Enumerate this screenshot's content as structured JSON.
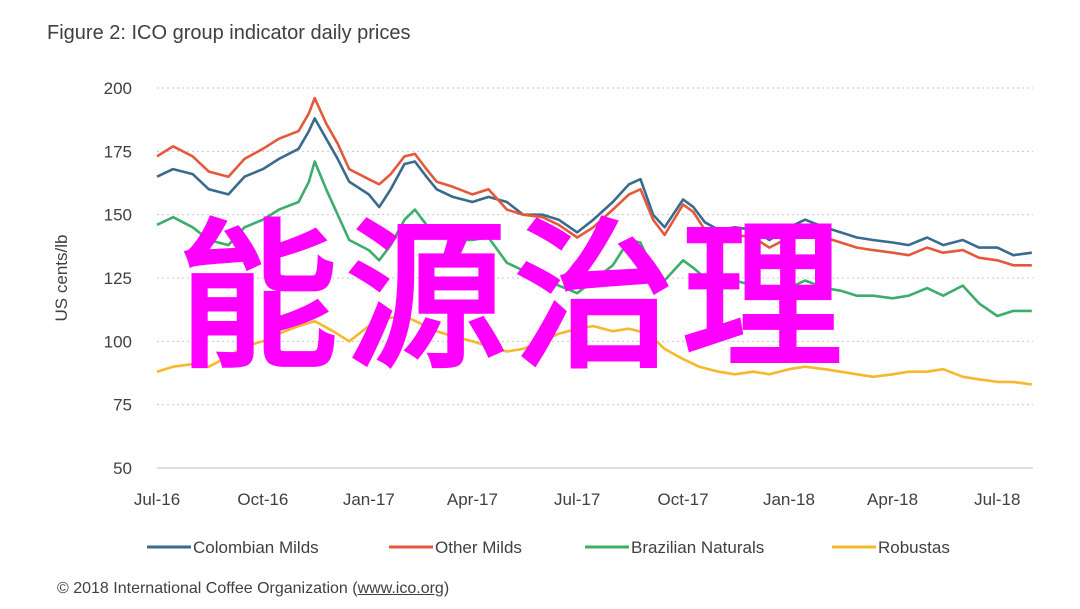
{
  "figure": {
    "title": "Figure 2: ICO group indicator daily prices",
    "source_prefix": "© 2018 International Coffee Organization (",
    "source_link": "www.ico.org",
    "source_suffix": ")",
    "watermark": "能源治理"
  },
  "chart_data": {
    "type": "line",
    "title": "Figure 2: ICO group indicator daily prices",
    "xlabel": "",
    "ylabel": "US cents/lb",
    "ylim": [
      50,
      200
    ],
    "yticks": [
      50,
      75,
      100,
      125,
      150,
      175,
      200
    ],
    "xlim": [
      "2016-07-01",
      "2018-08-01"
    ],
    "xticks": [
      {
        "label": "Jul-16",
        "date": "2016-07-01"
      },
      {
        "label": "Oct-16",
        "date": "2016-10-01"
      },
      {
        "label": "Jan-17",
        "date": "2017-01-01"
      },
      {
        "label": "Apr-17",
        "date": "2017-04-01"
      },
      {
        "label": "Jul-17",
        "date": "2017-07-01"
      },
      {
        "label": "Oct-17",
        "date": "2017-10-01"
      },
      {
        "label": "Jan-18",
        "date": "2018-01-01"
      },
      {
        "label": "Apr-18",
        "date": "2018-04-01"
      },
      {
        "label": "Jul-18",
        "date": "2018-07-01"
      }
    ],
    "grid": "horizontal-dotted",
    "legend_position": "bottom",
    "series": [
      {
        "name": "Colombian Milds",
        "color": "#3a6b8f",
        "points": [
          [
            "2016-07-01",
            165
          ],
          [
            "2016-07-15",
            168
          ],
          [
            "2016-08-01",
            166
          ],
          [
            "2016-08-15",
            160
          ],
          [
            "2016-09-01",
            158
          ],
          [
            "2016-09-15",
            165
          ],
          [
            "2016-10-01",
            168
          ],
          [
            "2016-10-15",
            172
          ],
          [
            "2016-11-01",
            176
          ],
          [
            "2016-11-10",
            183
          ],
          [
            "2016-11-15",
            188
          ],
          [
            "2016-11-25",
            180
          ],
          [
            "2016-12-05",
            172
          ],
          [
            "2016-12-15",
            163
          ],
          [
            "2017-01-01",
            158
          ],
          [
            "2017-01-10",
            153
          ],
          [
            "2017-01-20",
            160
          ],
          [
            "2017-02-01",
            170
          ],
          [
            "2017-02-10",
            171
          ],
          [
            "2017-02-20",
            165
          ],
          [
            "2017-03-01",
            160
          ],
          [
            "2017-03-15",
            157
          ],
          [
            "2017-04-01",
            155
          ],
          [
            "2017-04-15",
            157
          ],
          [
            "2017-05-01",
            155
          ],
          [
            "2017-05-15",
            150
          ],
          [
            "2017-06-01",
            150
          ],
          [
            "2017-06-15",
            148
          ],
          [
            "2017-07-01",
            143
          ],
          [
            "2017-07-15",
            148
          ],
          [
            "2017-08-01",
            155
          ],
          [
            "2017-08-15",
            162
          ],
          [
            "2017-08-25",
            164
          ],
          [
            "2017-09-05",
            150
          ],
          [
            "2017-09-15",
            145
          ],
          [
            "2017-10-01",
            156
          ],
          [
            "2017-10-10",
            153
          ],
          [
            "2017-10-20",
            147
          ],
          [
            "2017-11-01",
            144
          ],
          [
            "2017-11-15",
            145
          ],
          [
            "2017-12-01",
            144
          ],
          [
            "2017-12-15",
            140
          ],
          [
            "2018-01-01",
            145
          ],
          [
            "2018-01-15",
            148
          ],
          [
            "2018-02-01",
            145
          ],
          [
            "2018-02-15",
            143
          ],
          [
            "2018-03-01",
            141
          ],
          [
            "2018-03-15",
            140
          ],
          [
            "2018-04-01",
            139
          ],
          [
            "2018-04-15",
            138
          ],
          [
            "2018-05-01",
            141
          ],
          [
            "2018-05-15",
            138
          ],
          [
            "2018-06-01",
            140
          ],
          [
            "2018-06-15",
            137
          ],
          [
            "2018-07-01",
            137
          ],
          [
            "2018-07-15",
            134
          ],
          [
            "2018-07-31",
            135
          ]
        ]
      },
      {
        "name": "Other Milds",
        "color": "#e4593c",
        "points": [
          [
            "2016-07-01",
            173
          ],
          [
            "2016-07-15",
            177
          ],
          [
            "2016-08-01",
            173
          ],
          [
            "2016-08-15",
            167
          ],
          [
            "2016-09-01",
            165
          ],
          [
            "2016-09-15",
            172
          ],
          [
            "2016-10-01",
            176
          ],
          [
            "2016-10-15",
            180
          ],
          [
            "2016-11-01",
            183
          ],
          [
            "2016-11-10",
            190
          ],
          [
            "2016-11-15",
            196
          ],
          [
            "2016-11-25",
            186
          ],
          [
            "2016-12-05",
            178
          ],
          [
            "2016-12-15",
            168
          ],
          [
            "2017-01-01",
            164
          ],
          [
            "2017-01-10",
            162
          ],
          [
            "2017-01-20",
            166
          ],
          [
            "2017-02-01",
            173
          ],
          [
            "2017-02-10",
            174
          ],
          [
            "2017-02-20",
            168
          ],
          [
            "2017-03-01",
            163
          ],
          [
            "2017-03-15",
            161
          ],
          [
            "2017-04-01",
            158
          ],
          [
            "2017-04-15",
            160
          ],
          [
            "2017-05-01",
            152
          ],
          [
            "2017-05-15",
            150
          ],
          [
            "2017-06-01",
            149
          ],
          [
            "2017-06-15",
            146
          ],
          [
            "2017-07-01",
            141
          ],
          [
            "2017-07-15",
            145
          ],
          [
            "2017-08-01",
            152
          ],
          [
            "2017-08-15",
            158
          ],
          [
            "2017-08-25",
            160
          ],
          [
            "2017-09-05",
            148
          ],
          [
            "2017-09-15",
            142
          ],
          [
            "2017-10-01",
            154
          ],
          [
            "2017-10-10",
            151
          ],
          [
            "2017-10-20",
            144
          ],
          [
            "2017-11-01",
            141
          ],
          [
            "2017-11-15",
            142
          ],
          [
            "2017-12-01",
            141
          ],
          [
            "2017-12-15",
            137
          ],
          [
            "2018-01-01",
            141
          ],
          [
            "2018-01-15",
            144
          ],
          [
            "2018-02-01",
            141
          ],
          [
            "2018-02-15",
            139
          ],
          [
            "2018-03-01",
            137
          ],
          [
            "2018-03-15",
            136
          ],
          [
            "2018-04-01",
            135
          ],
          [
            "2018-04-15",
            134
          ],
          [
            "2018-05-01",
            137
          ],
          [
            "2018-05-15",
            135
          ],
          [
            "2018-06-01",
            136
          ],
          [
            "2018-06-15",
            133
          ],
          [
            "2018-07-01",
            132
          ],
          [
            "2018-07-15",
            130
          ],
          [
            "2018-07-31",
            130
          ]
        ]
      },
      {
        "name": "Brazilian Naturals",
        "color": "#3cad6a",
        "points": [
          [
            "2016-07-01",
            146
          ],
          [
            "2016-07-15",
            149
          ],
          [
            "2016-08-01",
            145
          ],
          [
            "2016-08-15",
            140
          ],
          [
            "2016-09-01",
            138
          ],
          [
            "2016-09-15",
            145
          ],
          [
            "2016-10-01",
            148
          ],
          [
            "2016-10-15",
            152
          ],
          [
            "2016-11-01",
            155
          ],
          [
            "2016-11-10",
            163
          ],
          [
            "2016-11-15",
            171
          ],
          [
            "2016-11-25",
            160
          ],
          [
            "2016-12-05",
            150
          ],
          [
            "2016-12-15",
            140
          ],
          [
            "2017-01-01",
            136
          ],
          [
            "2017-01-10",
            132
          ],
          [
            "2017-01-20",
            138
          ],
          [
            "2017-02-01",
            148
          ],
          [
            "2017-02-10",
            152
          ],
          [
            "2017-02-20",
            146
          ],
          [
            "2017-03-01",
            142
          ],
          [
            "2017-03-15",
            140
          ],
          [
            "2017-04-01",
            140
          ],
          [
            "2017-04-15",
            141
          ],
          [
            "2017-05-01",
            131
          ],
          [
            "2017-05-15",
            128
          ],
          [
            "2017-06-01",
            125
          ],
          [
            "2017-06-15",
            122
          ],
          [
            "2017-07-01",
            119
          ],
          [
            "2017-07-15",
            124
          ],
          [
            "2017-08-01",
            130
          ],
          [
            "2017-08-15",
            140
          ],
          [
            "2017-08-25",
            139
          ],
          [
            "2017-09-05",
            128
          ],
          [
            "2017-09-15",
            124
          ],
          [
            "2017-10-01",
            132
          ],
          [
            "2017-10-10",
            129
          ],
          [
            "2017-10-20",
            125
          ],
          [
            "2017-11-01",
            122
          ],
          [
            "2017-11-15",
            124
          ],
          [
            "2017-12-01",
            122
          ],
          [
            "2017-12-15",
            118
          ],
          [
            "2018-01-01",
            121
          ],
          [
            "2018-01-15",
            124
          ],
          [
            "2018-02-01",
            121
          ],
          [
            "2018-02-15",
            120
          ],
          [
            "2018-03-01",
            118
          ],
          [
            "2018-03-15",
            118
          ],
          [
            "2018-04-01",
            117
          ],
          [
            "2018-04-15",
            118
          ],
          [
            "2018-05-01",
            121
          ],
          [
            "2018-05-15",
            118
          ],
          [
            "2018-06-01",
            122
          ],
          [
            "2018-06-15",
            115
          ],
          [
            "2018-07-01",
            110
          ],
          [
            "2018-07-15",
            112
          ],
          [
            "2018-07-31",
            112
          ]
        ]
      },
      {
        "name": "Robustas",
        "color": "#f5b82e",
        "points": [
          [
            "2016-07-01",
            88
          ],
          [
            "2016-07-15",
            90
          ],
          [
            "2016-08-01",
            91
          ],
          [
            "2016-08-15",
            90
          ],
          [
            "2016-09-01",
            94
          ],
          [
            "2016-09-15",
            98
          ],
          [
            "2016-10-01",
            100
          ],
          [
            "2016-10-15",
            103
          ],
          [
            "2016-11-01",
            106
          ],
          [
            "2016-11-15",
            108
          ],
          [
            "2016-12-01",
            104
          ],
          [
            "2016-12-15",
            100
          ],
          [
            "2017-01-01",
            106
          ],
          [
            "2017-01-15",
            109
          ],
          [
            "2017-02-01",
            110
          ],
          [
            "2017-02-15",
            107
          ],
          [
            "2017-03-01",
            104
          ],
          [
            "2017-03-15",
            102
          ],
          [
            "2017-04-01",
            100
          ],
          [
            "2017-04-15",
            98
          ],
          [
            "2017-05-01",
            96
          ],
          [
            "2017-05-15",
            97
          ],
          [
            "2017-06-01",
            100
          ],
          [
            "2017-06-15",
            103
          ],
          [
            "2017-07-01",
            105
          ],
          [
            "2017-07-15",
            106
          ],
          [
            "2017-08-01",
            104
          ],
          [
            "2017-08-15",
            105
          ],
          [
            "2017-09-01",
            103
          ],
          [
            "2017-09-15",
            97
          ],
          [
            "2017-10-01",
            93
          ],
          [
            "2017-10-15",
            90
          ],
          [
            "2017-11-01",
            88
          ],
          [
            "2017-11-15",
            87
          ],
          [
            "2017-12-01",
            88
          ],
          [
            "2017-12-15",
            87
          ],
          [
            "2018-01-01",
            89
          ],
          [
            "2018-01-15",
            90
          ],
          [
            "2018-02-01",
            89
          ],
          [
            "2018-02-15",
            88
          ],
          [
            "2018-03-01",
            87
          ],
          [
            "2018-03-15",
            86
          ],
          [
            "2018-04-01",
            87
          ],
          [
            "2018-04-15",
            88
          ],
          [
            "2018-05-01",
            88
          ],
          [
            "2018-05-15",
            89
          ],
          [
            "2018-06-01",
            86
          ],
          [
            "2018-06-15",
            85
          ],
          [
            "2018-07-01",
            84
          ],
          [
            "2018-07-15",
            84
          ],
          [
            "2018-07-31",
            83
          ]
        ]
      }
    ]
  }
}
